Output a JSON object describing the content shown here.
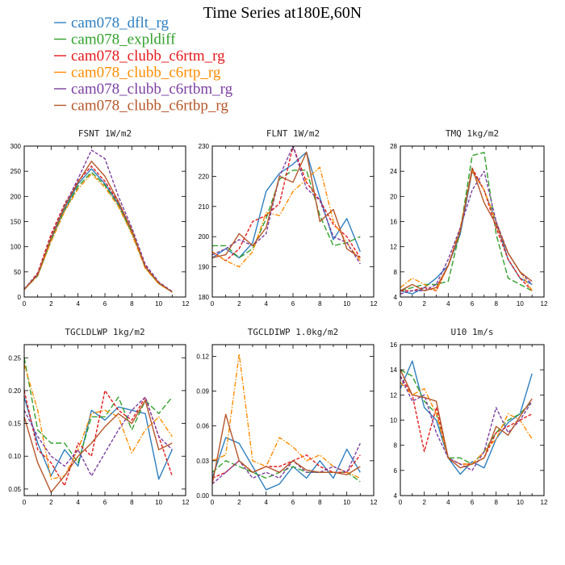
{
  "title": "Time Series at180E,60N",
  "legend": [
    {
      "name": "cam078_dflt_rg",
      "color": "#2f7fbf",
      "dash": "solid"
    },
    {
      "name": "cam078_expldiff",
      "color": "#33a02c",
      "dash": "longdash"
    },
    {
      "name": "cam078_clubb_c6rtm_rg",
      "color": "#e31a1c",
      "dash": "dash"
    },
    {
      "name": "cam078_clubb_c6rtp_rg",
      "color": "#ff8c00",
      "dash": "dashdot"
    },
    {
      "name": "cam078_clubb_c6rtbm_rg",
      "color": "#7b3fa0",
      "dash": "dash"
    },
    {
      "name": "cam078_clubb_c6rtbp_rg",
      "color": "#b5562a",
      "dash": "solid"
    }
  ],
  "chart_data": [
    {
      "type": "line",
      "title": "FSNT  1W/m2",
      "x": [
        0,
        1,
        2,
        3,
        4,
        5,
        6,
        7,
        8,
        9,
        10,
        11
      ],
      "xlim": [
        0,
        12
      ],
      "xticks": [
        0,
        2,
        4,
        6,
        8,
        10,
        12
      ],
      "ylim": [
        0,
        300
      ],
      "yticks": [
        0,
        50,
        100,
        150,
        200,
        250,
        300
      ],
      "ytick_labels": [
        "0",
        "50",
        "100",
        "150",
        "200",
        "250",
        "300"
      ],
      "series": [
        {
          "name": "cam078_dflt_rg",
          "values": [
            15,
            45,
            115,
            175,
            225,
            255,
            225,
            185,
            130,
            60,
            28,
            10
          ]
        },
        {
          "name": "cam078_expldiff",
          "values": [
            15,
            42,
            112,
            172,
            220,
            248,
            222,
            182,
            128,
            58,
            27,
            10
          ]
        },
        {
          "name": "cam078_clubb_c6rtm_rg",
          "values": [
            15,
            48,
            125,
            185,
            230,
            260,
            230,
            188,
            132,
            62,
            28,
            10
          ]
        },
        {
          "name": "cam078_clubb_c6rtp_rg",
          "values": [
            15,
            43,
            110,
            170,
            215,
            245,
            218,
            180,
            125,
            57,
            26,
            10
          ]
        },
        {
          "name": "cam078_clubb_c6rtbm_rg",
          "values": [
            16,
            45,
            120,
            182,
            235,
            292,
            275,
            200,
            138,
            65,
            30,
            11
          ]
        },
        {
          "name": "cam078_clubb_c6rtbp_rg",
          "values": [
            15,
            44,
            118,
            180,
            228,
            270,
            240,
            190,
            133,
            60,
            28,
            10
          ]
        }
      ]
    },
    {
      "type": "line",
      "title": "FLNT  1W/m2",
      "x": [
        0,
        1,
        2,
        3,
        4,
        5,
        6,
        7,
        8,
        9,
        10,
        11
      ],
      "xlim": [
        0,
        12
      ],
      "xticks": [
        0,
        2,
        4,
        6,
        8,
        10,
        12
      ],
      "ylim": [
        180,
        230
      ],
      "yticks": [
        180,
        190,
        200,
        210,
        220,
        230
      ],
      "ytick_labels": [
        "180",
        "190",
        "200",
        "210",
        "220",
        "230"
      ],
      "series": [
        {
          "name": "cam078_dflt_rg",
          "values": [
            193,
            196,
            193,
            198,
            215,
            221,
            224,
            228,
            213,
            199,
            206,
            195
          ]
        },
        {
          "name": "cam078_expldiff",
          "values": [
            197,
            197,
            193,
            196,
            206,
            219,
            222,
            222,
            207,
            197,
            198,
            200
          ]
        },
        {
          "name": "cam078_clubb_c6rtm_rg",
          "values": [
            195,
            192,
            196,
            205,
            207,
            211,
            230,
            218,
            212,
            204,
            200,
            193
          ]
        },
        {
          "name": "cam078_clubb_c6rtp_rg",
          "values": [
            195,
            192,
            190,
            195,
            208,
            207,
            215,
            219,
            223,
            205,
            198,
            192
          ]
        },
        {
          "name": "cam078_clubb_c6rtbm_rg",
          "values": [
            194,
            196,
            199,
            197,
            201,
            220,
            230,
            216,
            212,
            200,
            198,
            191
          ]
        },
        {
          "name": "cam078_clubb_c6rtbp_rg",
          "values": [
            193,
            194,
            201,
            197,
            203,
            220,
            218,
            228,
            205,
            209,
            196,
            193
          ]
        }
      ]
    },
    {
      "type": "line",
      "title": "TMQ  1kg/m2",
      "x": [
        0,
        1,
        2,
        3,
        4,
        5,
        6,
        7,
        8,
        9,
        10,
        11
      ],
      "xlim": [
        0,
        12
      ],
      "xticks": [
        0,
        2,
        4,
        6,
        8,
        10,
        12
      ],
      "ylim": [
        4,
        28
      ],
      "yticks": [
        4,
        8,
        12,
        16,
        20,
        24,
        28
      ],
      "ytick_labels": [
        "4",
        "8",
        "12",
        "16",
        "20",
        "24",
        "28"
      ],
      "series": [
        {
          "name": "cam078_dflt_rg",
          "values": [
            5,
            4.5,
            5.5,
            7,
            9,
            14,
            24,
            21,
            16,
            10,
            7,
            6
          ]
        },
        {
          "name": "cam078_expldiff",
          "values": [
            5,
            5.5,
            6,
            6,
            6.5,
            14.5,
            26.5,
            27,
            14,
            7,
            6,
            5
          ]
        },
        {
          "name": "cam078_clubb_c6rtm_rg",
          "values": [
            5,
            5,
            5.5,
            5,
            9,
            14.5,
            24.5,
            21,
            15,
            10,
            7,
            5
          ]
        },
        {
          "name": "cam078_clubb_c6rtp_rg",
          "values": [
            5.5,
            7,
            6,
            5,
            9,
            15,
            24,
            21,
            16,
            11,
            8,
            5
          ]
        },
        {
          "name": "cam078_clubb_c6rtbm_rg",
          "values": [
            4.5,
            5,
            5,
            6,
            10,
            15,
            21,
            24,
            16,
            11,
            8,
            6
          ]
        },
        {
          "name": "cam078_clubb_c6rtbp_rg",
          "values": [
            5,
            6,
            5,
            5.5,
            9,
            14.5,
            24.5,
            19,
            15.5,
            11,
            8,
            6.5
          ]
        }
      ]
    },
    {
      "type": "line",
      "title": "TGCLDLWP  1kg/m2",
      "x": [
        0,
        1,
        2,
        3,
        4,
        5,
        6,
        7,
        8,
        9,
        10,
        11
      ],
      "xlim": [
        0,
        12
      ],
      "xticks": [
        0,
        2,
        4,
        6,
        8,
        10,
        12
      ],
      "ylim": [
        0.04,
        0.27
      ],
      "yticks": [
        0.05,
        0.1,
        0.15,
        0.2,
        0.25
      ],
      "ytick_labels": [
        "0.05",
        "0.10",
        "0.15",
        "0.20",
        "0.25"
      ],
      "series": [
        {
          "name": "cam078_dflt_rg",
          "values": [
            0.19,
            0.12,
            0.07,
            0.11,
            0.085,
            0.17,
            0.155,
            0.175,
            0.17,
            0.165,
            0.065,
            0.11
          ]
        },
        {
          "name": "cam078_expldiff",
          "values": [
            0.25,
            0.14,
            0.12,
            0.12,
            0.09,
            0.16,
            0.16,
            0.19,
            0.14,
            0.185,
            0.165,
            0.19
          ]
        },
        {
          "name": "cam078_clubb_c6rtm_rg",
          "values": [
            0.2,
            0.11,
            0.09,
            0.055,
            0.12,
            0.1,
            0.2,
            0.17,
            0.155,
            0.19,
            0.13,
            0.07
          ]
        },
        {
          "name": "cam078_clubb_c6rtp_rg",
          "values": [
            0.24,
            0.17,
            0.065,
            0.07,
            0.11,
            0.165,
            0.17,
            0.16,
            0.105,
            0.14,
            0.16,
            0.13
          ]
        },
        {
          "name": "cam078_clubb_c6rtbm_rg",
          "values": [
            0.17,
            0.13,
            0.1,
            0.085,
            0.11,
            0.07,
            0.105,
            0.14,
            0.17,
            0.19,
            0.13,
            0.11
          ]
        },
        {
          "name": "cam078_clubb_c6rtbp_rg",
          "values": [
            0.16,
            0.09,
            0.045,
            0.07,
            0.1,
            0.12,
            0.145,
            0.165,
            0.15,
            0.185,
            0.11,
            0.12
          ]
        }
      ]
    },
    {
      "type": "line",
      "title": "TGCLDIWP  1.0kg/m2",
      "x": [
        0,
        1,
        2,
        3,
        4,
        5,
        6,
        7,
        8,
        9,
        10,
        11
      ],
      "xlim": [
        0,
        12
      ],
      "xticks": [
        0,
        2,
        4,
        6,
        8,
        10,
        12
      ],
      "ylim": [
        0,
        0.13
      ],
      "yticks": [
        0,
        0.03,
        0.06,
        0.09,
        0.12
      ],
      "ytick_labels": [
        "0.00",
        "0.03",
        "0.06",
        "0.09",
        "0.12"
      ],
      "series": [
        {
          "name": "cam078_dflt_rg",
          "values": [
            0.015,
            0.05,
            0.045,
            0.025,
            0.005,
            0.01,
            0.025,
            0.015,
            0.03,
            0.015,
            0.04,
            0.02
          ]
        },
        {
          "name": "cam078_expldiff",
          "values": [
            0.02,
            0.03,
            0.025,
            0.02,
            0.015,
            0.02,
            0.025,
            0.02,
            0.02,
            0.02,
            0.02,
            0.012
          ]
        },
        {
          "name": "cam078_clubb_c6rtm_rg",
          "values": [
            0.015,
            0.02,
            0.03,
            0.02,
            0.025,
            0.025,
            0.03,
            0.035,
            0.025,
            0.02,
            0.02,
            0.035
          ]
        },
        {
          "name": "cam078_clubb_c6rtp_rg",
          "values": [
            0.03,
            0.035,
            0.122,
            0.03,
            0.025,
            0.05,
            0.042,
            0.03,
            0.035,
            0.025,
            0.02,
            0.015
          ]
        },
        {
          "name": "cam078_clubb_c6rtbm_rg",
          "values": [
            0.01,
            0.02,
            0.03,
            0.015,
            0.02,
            0.015,
            0.03,
            0.02,
            0.02,
            0.025,
            0.02,
            0.045
          ]
        },
        {
          "name": "cam078_clubb_c6rtbp_rg",
          "values": [
            0.01,
            0.07,
            0.03,
            0.02,
            0.025,
            0.02,
            0.03,
            0.022,
            0.02,
            0.02,
            0.018,
            0.025
          ]
        }
      ]
    },
    {
      "type": "line",
      "title": "U10  1m/s",
      "x": [
        0,
        1,
        2,
        3,
        4,
        5,
        6,
        7,
        8,
        9,
        10,
        11
      ],
      "xlim": [
        0,
        12
      ],
      "xticks": [
        0,
        2,
        4,
        6,
        8,
        10,
        12
      ],
      "ylim": [
        4,
        16
      ],
      "yticks": [
        4,
        6,
        8,
        10,
        12,
        14,
        16
      ],
      "ytick_labels": [
        "4",
        "6",
        "8",
        "10",
        "12",
        "14",
        "16"
      ],
      "series": [
        {
          "name": "cam078_dflt_rg",
          "values": [
            12.5,
            14.7,
            11,
            10,
            7,
            5.7,
            6.7,
            6.2,
            8.5,
            9.8,
            10.5,
            13.7
          ]
        },
        {
          "name": "cam078_expldiff",
          "values": [
            14,
            13.5,
            11.5,
            10.5,
            7,
            7,
            6.5,
            7.5,
            9,
            10,
            10.5,
            11.5
          ]
        },
        {
          "name": "cam078_clubb_c6rtm_rg",
          "values": [
            13.5,
            12,
            7.5,
            11,
            7,
            6.5,
            6.5,
            7,
            9,
            9.5,
            10,
            10.5
          ]
        },
        {
          "name": "cam078_clubb_c6rtp_rg",
          "values": [
            13,
            12,
            12.5,
            10.5,
            7,
            6.5,
            6.5,
            7.5,
            8.5,
            10.5,
            10,
            8.5
          ]
        },
        {
          "name": "cam078_clubb_c6rtbm_rg",
          "values": [
            13.5,
            11.5,
            12,
            9,
            7,
            6.5,
            6,
            7.5,
            11,
            9,
            10,
            11.5
          ]
        },
        {
          "name": "cam078_clubb_c6rtbp_rg",
          "values": [
            14,
            12,
            11.8,
            11.5,
            7,
            6.2,
            6.5,
            7,
            9.5,
            8.8,
            10.3,
            11.7
          ]
        }
      ]
    }
  ]
}
